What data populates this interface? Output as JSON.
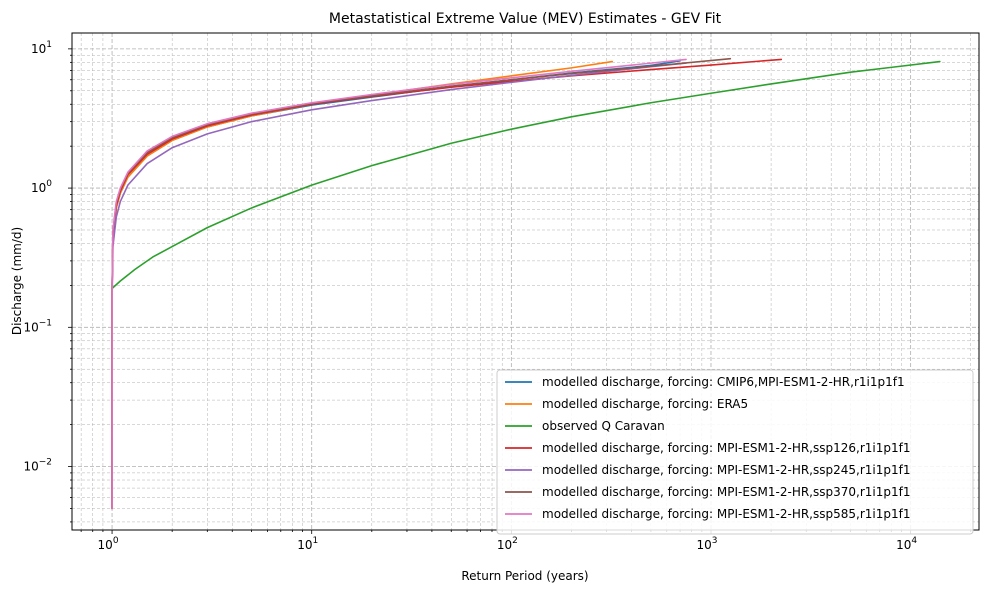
{
  "chart_data": {
    "type": "line",
    "title": "Metastatistical Extreme Value (MEV) Estimates - GEV Fit",
    "xlabel": "Return Period (years)",
    "ylabel": "Discharge (mm/d)",
    "xscale": "log",
    "yscale": "log",
    "xlim": [
      0.63,
      22000
    ],
    "ylim": [
      0.0035,
      13
    ],
    "grid": true,
    "legend_position": "lower-right",
    "x_ticks": [
      {
        "value": 1,
        "base": "10",
        "exp": "0"
      },
      {
        "value": 10,
        "base": "10",
        "exp": "1"
      },
      {
        "value": 100,
        "base": "10",
        "exp": "2"
      },
      {
        "value": 1000,
        "base": "10",
        "exp": "3"
      },
      {
        "value": 10000,
        "base": "10",
        "exp": "4"
      }
    ],
    "y_ticks": [
      {
        "value": 0.01,
        "base": "10",
        "exp": "−2"
      },
      {
        "value": 0.1,
        "base": "10",
        "exp": "−1"
      },
      {
        "value": 1,
        "base": "10",
        "exp": "0"
      },
      {
        "value": 10,
        "base": "10",
        "exp": "1"
      }
    ],
    "series": [
      {
        "name": "modelled discharge, forcing: CMIP6,MPI-ESM1-2-HR,r1i1p1f1",
        "color": "#1f77b4",
        "x": [
          1.0,
          1.001,
          1.01,
          1.05,
          1.1,
          1.2,
          1.5,
          2,
          3,
          5,
          10,
          20,
          50,
          100,
          200,
          500,
          700
        ],
        "y": [
          0.005,
          0.2,
          0.45,
          0.72,
          0.92,
          1.2,
          1.7,
          2.2,
          2.75,
          3.3,
          3.95,
          4.5,
          5.35,
          6.0,
          6.7,
          7.6,
          8.2
        ]
      },
      {
        "name": "modelled discharge, forcing: ERA5",
        "color": "#ff7f0e",
        "x": [
          1.0,
          1.001,
          1.01,
          1.05,
          1.1,
          1.2,
          1.5,
          2,
          3,
          5,
          10,
          20,
          50,
          100,
          200,
          320
        ],
        "y": [
          0.005,
          0.2,
          0.45,
          0.72,
          0.92,
          1.2,
          1.7,
          2.2,
          2.75,
          3.3,
          4.0,
          4.65,
          5.6,
          6.4,
          7.3,
          8.1
        ]
      },
      {
        "name": "observed Q Caravan",
        "color": "#2ca02c",
        "x": [
          1.0,
          1.1,
          1.3,
          1.6,
          2,
          3,
          5,
          10,
          20,
          50,
          100,
          200,
          500,
          1000,
          2000,
          5000,
          14000
        ],
        "y": [
          0.19,
          0.215,
          0.26,
          0.32,
          0.38,
          0.52,
          0.72,
          1.05,
          1.45,
          2.1,
          2.65,
          3.25,
          4.1,
          4.8,
          5.6,
          6.8,
          8.1
        ]
      },
      {
        "name": "modelled discharge, forcing: MPI-ESM1-2-HR,ssp126,r1i1p1f1",
        "color": "#d62728",
        "x": [
          1.0,
          1.001,
          1.01,
          1.05,
          1.1,
          1.2,
          1.5,
          2,
          3,
          5,
          10,
          20,
          50,
          100,
          200,
          500,
          1000,
          2250
        ],
        "y": [
          0.005,
          0.2,
          0.47,
          0.75,
          0.95,
          1.25,
          1.75,
          2.25,
          2.8,
          3.35,
          4.0,
          4.55,
          5.3,
          5.85,
          6.4,
          7.1,
          7.65,
          8.4
        ]
      },
      {
        "name": "modelled discharge, forcing: MPI-ESM1-2-HR,ssp245,r1i1p1f1",
        "color": "#9467bd",
        "x": [
          1.0,
          1.001,
          1.01,
          1.05,
          1.1,
          1.2,
          1.5,
          2,
          3,
          5,
          10,
          20,
          50,
          100,
          200,
          500,
          750
        ],
        "y": [
          0.005,
          0.17,
          0.38,
          0.62,
          0.8,
          1.05,
          1.5,
          1.95,
          2.45,
          3.0,
          3.65,
          4.25,
          5.1,
          5.75,
          6.45,
          7.45,
          7.9
        ]
      },
      {
        "name": "modelled discharge, forcing: MPI-ESM1-2-HR,ssp370,r1i1p1f1",
        "color": "#8c564b",
        "x": [
          1.0,
          1.001,
          1.01,
          1.05,
          1.1,
          1.2,
          1.5,
          2,
          3,
          5,
          10,
          20,
          50,
          100,
          200,
          500,
          1250
        ],
        "y": [
          0.005,
          0.21,
          0.48,
          0.78,
          0.98,
          1.28,
          1.8,
          2.3,
          2.85,
          3.4,
          4.05,
          4.6,
          5.4,
          6.0,
          6.65,
          7.5,
          8.5
        ]
      },
      {
        "name": "modelled discharge, forcing: MPI-ESM1-2-HR,ssp585,r1i1p1f1",
        "color": "#e377c2",
        "x": [
          1.0,
          1.001,
          1.01,
          1.05,
          1.1,
          1.2,
          1.5,
          2,
          3,
          5,
          10,
          20,
          50,
          100,
          200,
          500,
          750
        ],
        "y": [
          0.005,
          0.22,
          0.5,
          0.8,
          1.0,
          1.3,
          1.85,
          2.35,
          2.9,
          3.45,
          4.1,
          4.7,
          5.55,
          6.2,
          6.9,
          7.9,
          8.4
        ]
      }
    ]
  }
}
